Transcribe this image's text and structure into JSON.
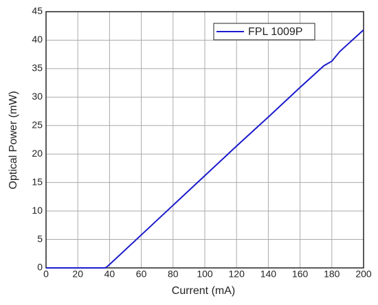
{
  "chart_data": {
    "type": "line",
    "x_label": "Current (mA)",
    "y_label": "Optical Power (mW)",
    "x": [
      0,
      37,
      38,
      40,
      60,
      80,
      100,
      120,
      140,
      160,
      175,
      180,
      185,
      200
    ],
    "series": [
      {
        "name": "FPL 1009P",
        "color": "#1a1acc",
        "values": [
          0,
          0,
          0.1,
          0.6,
          5.8,
          11,
          16.2,
          21.4,
          26.5,
          31.7,
          35.5,
          36.3,
          38,
          41.8
        ]
      }
    ],
    "xlim": [
      0,
      200
    ],
    "xticks": [
      0,
      20,
      40,
      60,
      80,
      100,
      120,
      140,
      160,
      180,
      200
    ],
    "ylim": [
      0,
      45
    ],
    "yticks": [
      0,
      5,
      10,
      15,
      20,
      25,
      30,
      35,
      40,
      45
    ],
    "grid": true,
    "legend": "top-right"
  }
}
